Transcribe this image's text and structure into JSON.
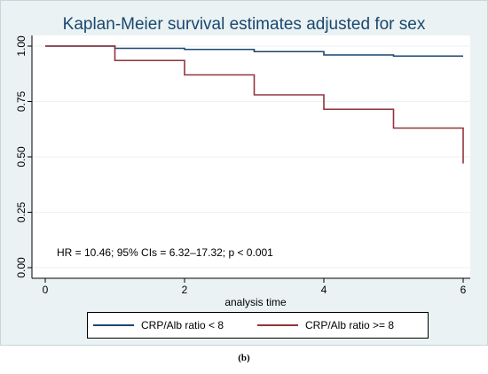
{
  "chart_data": {
    "type": "line",
    "title": "Kaplan-Meier survival estimates adjusted for sex",
    "xlabel": "analysis time",
    "ylabel": "",
    "xlim": [
      0,
      6
    ],
    "ylim": [
      0,
      1
    ],
    "x_ticks": [
      0,
      2,
      4,
      6
    ],
    "y_ticks": [
      0,
      0.25,
      0.5,
      0.75,
      1
    ],
    "x_tick_labels": [
      "0",
      "2",
      "4",
      "6"
    ],
    "y_tick_labels": [
      "0.00",
      "0.25",
      "0.50",
      "0.75",
      "1.00"
    ],
    "grid": "horizontal",
    "step": true,
    "legend_position": "bottom",
    "series": [
      {
        "name": "CRP/Alb ratio < 8",
        "color": "#1a476f",
        "x": [
          0,
          1,
          2,
          3,
          4,
          5,
          6
        ],
        "y": [
          1.0,
          0.99,
          0.985,
          0.975,
          0.96,
          0.955,
          0.955
        ]
      },
      {
        "name": "CRP/Alb ratio >= 8",
        "color": "#90353b",
        "x": [
          0,
          1,
          2,
          3,
          4,
          5,
          6,
          6
        ],
        "y": [
          1.0,
          0.935,
          0.87,
          0.78,
          0.715,
          0.63,
          0.63,
          0.47
        ]
      }
    ],
    "annotation": "HR = 10.46; 95% CIs = 6.32–17.32; p < 0.001"
  },
  "caption": "(b)"
}
